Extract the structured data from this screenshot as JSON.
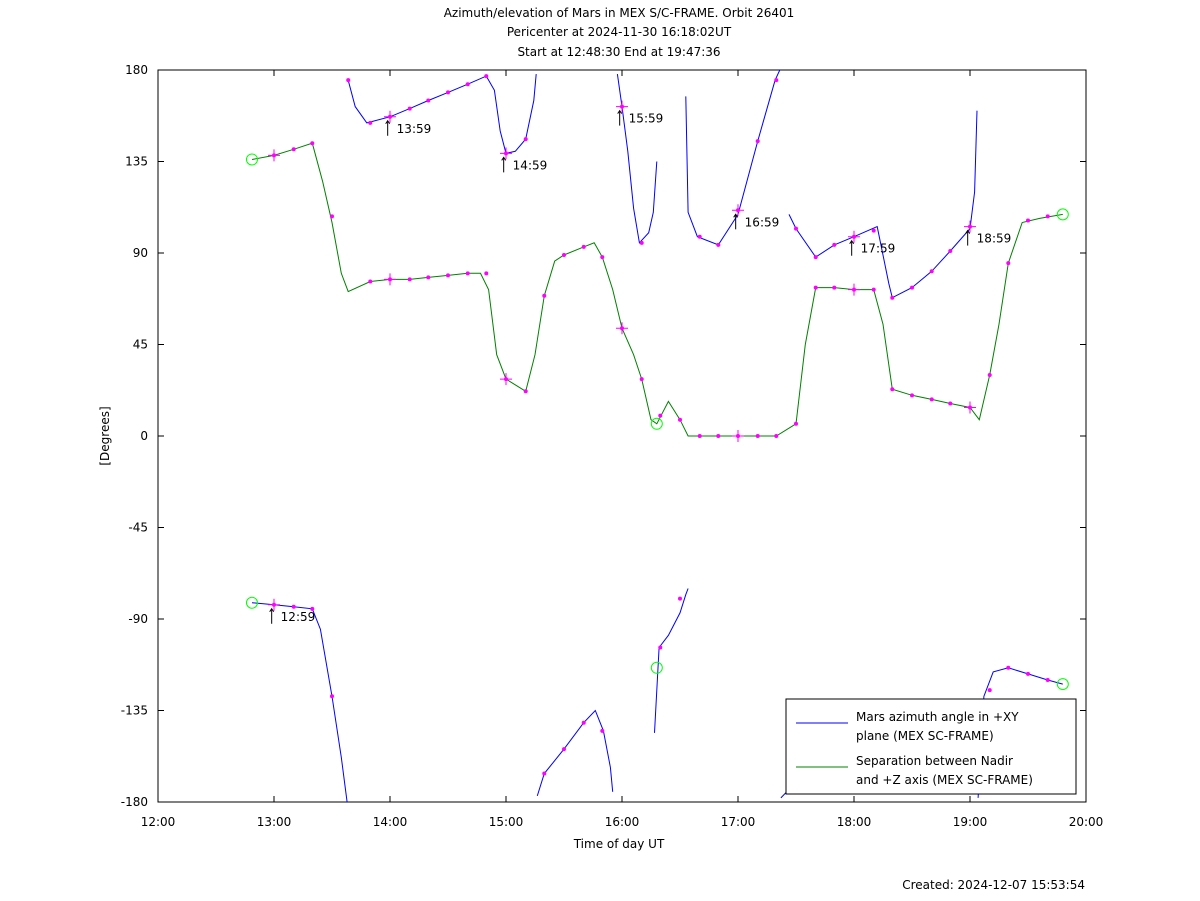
{
  "chart_data": {
    "type": "line",
    "title": "Azimuth/elevation of Mars in MEX S/C-FRAME.  Orbit 26401",
    "subtitle_1": "Pericenter at 2024-11-30 16:18:02UT",
    "subtitle_2": "Start at 12:48:30 End at 19:47:36",
    "xlabel": "Time of day UT",
    "ylabel": "[Degrees]",
    "x_unit": "hours of day (UT)",
    "xlim": [
      12,
      20
    ],
    "ylim": [
      -180,
      180
    ],
    "x_ticks": [
      12,
      13,
      14,
      15,
      16,
      17,
      18,
      19,
      20
    ],
    "x_tick_labels": [
      "12:00",
      "13:00",
      "14:00",
      "15:00",
      "16:00",
      "17:00",
      "18:00",
      "19:00",
      "20:00"
    ],
    "y_ticks": [
      -180,
      -135,
      -90,
      -45,
      0,
      45,
      90,
      135,
      180
    ],
    "y_tick_labels": [
      "-180",
      "-135",
      "-90",
      "-45",
      "0",
      "45",
      "90",
      "135",
      "180"
    ],
    "grid": false,
    "legend_position": "bottom-right",
    "footer": "Created: 2024-12-07 15:53:54",
    "colors": {
      "azimuth": "#0000ff",
      "separation": "#008000",
      "markers": "#ff00ff",
      "endpoints": "#00ff00"
    },
    "series": [
      {
        "name": "Mars azimuth angle in +XY plane (MEX SC-FRAME)",
        "legend_line1": "Mars azimuth angle in +XY",
        "legend_line2": "plane (MEX SC-FRAME)",
        "color": "#0000ff",
        "segments": [
          [
            [
              12.81,
              -82
            ],
            [
              13.0,
              -83
            ],
            [
              13.17,
              -84
            ],
            [
              13.33,
              -85
            ],
            [
              13.4,
              -95
            ],
            [
              13.5,
              -128
            ],
            [
              13.58,
              -158
            ],
            [
              13.63,
              -180
            ]
          ],
          [
            [
              13.64,
              175
            ],
            [
              13.7,
              162
            ],
            [
              13.8,
              154
            ],
            [
              14.0,
              157
            ],
            [
              14.17,
              161
            ],
            [
              14.33,
              165
            ],
            [
              14.5,
              169
            ],
            [
              14.67,
              173
            ],
            [
              14.83,
              177
            ],
            [
              14.9,
              170
            ],
            [
              14.95,
              150
            ],
            [
              15.0,
              139
            ],
            [
              15.08,
              140
            ],
            [
              15.17,
              146
            ],
            [
              15.24,
              165
            ],
            [
              15.26,
              178
            ]
          ],
          [
            [
              15.27,
              -177
            ],
            [
              15.33,
              -166
            ],
            [
              15.5,
              -154
            ],
            [
              15.67,
              -141
            ],
            [
              15.77,
              -135
            ],
            [
              15.84,
              -145
            ],
            [
              15.9,
              -163
            ],
            [
              15.92,
              -175
            ]
          ],
          [
            [
              15.96,
              178
            ],
            [
              16.0,
              162
            ],
            [
              16.05,
              140
            ],
            [
              16.1,
              112
            ],
            [
              16.15,
              95
            ],
            [
              16.23,
              100
            ],
            [
              16.27,
              110
            ],
            [
              16.3,
              135
            ]
          ],
          [
            [
              16.28,
              -146
            ],
            [
              16.32,
              -104
            ],
            [
              16.4,
              -98
            ],
            [
              16.5,
              -87
            ],
            [
              16.55,
              -78
            ],
            [
              16.57,
              -75
            ]
          ],
          [
            [
              16.55,
              167
            ],
            [
              16.57,
              110
            ],
            [
              16.65,
              98
            ],
            [
              16.83,
              94
            ],
            [
              17.0,
              109
            ],
            [
              17.17,
              145
            ],
            [
              17.32,
              175
            ],
            [
              17.36,
              180
            ]
          ],
          [
            [
              17.37,
              -178
            ],
            [
              17.42,
              -175
            ]
          ],
          [
            [
              17.44,
              109
            ],
            [
              17.5,
              102
            ],
            [
              17.67,
              88
            ],
            [
              17.83,
              94
            ],
            [
              18.0,
              98
            ],
            [
              18.2,
              103
            ],
            [
              18.3,
              75
            ],
            [
              18.33,
              68
            ],
            [
              18.5,
              73
            ],
            [
              18.67,
              81
            ],
            [
              18.83,
              91
            ],
            [
              19.0,
              102
            ],
            [
              19.04,
              120
            ],
            [
              19.06,
              160
            ]
          ],
          [
            [
              19.07,
              -178
            ],
            [
              19.12,
              -128
            ],
            [
              19.2,
              -116
            ],
            [
              19.33,
              -114
            ],
            [
              19.5,
              -117
            ],
            [
              19.67,
              -120
            ],
            [
              19.8,
              -122
            ]
          ]
        ],
        "markers": [
          [
            13.0,
            -83
          ],
          [
            13.17,
            -84
          ],
          [
            13.33,
            -85
          ],
          [
            13.5,
            -128
          ],
          [
            13.64,
            175
          ],
          [
            13.83,
            154
          ],
          [
            14.0,
            157
          ],
          [
            14.17,
            161
          ],
          [
            14.33,
            165
          ],
          [
            14.5,
            169
          ],
          [
            14.67,
            173
          ],
          [
            14.83,
            177
          ],
          [
            15.0,
            139
          ],
          [
            15.17,
            146
          ],
          [
            15.33,
            -166
          ],
          [
            15.5,
            -154
          ],
          [
            15.67,
            -141
          ],
          [
            15.83,
            -145
          ],
          [
            16.0,
            162
          ],
          [
            16.17,
            95
          ],
          [
            16.33,
            -104
          ],
          [
            16.5,
            -80
          ],
          [
            16.67,
            98
          ],
          [
            16.83,
            94
          ],
          [
            17.0,
            111
          ],
          [
            17.17,
            145
          ],
          [
            17.33,
            175
          ],
          [
            17.5,
            102
          ],
          [
            17.67,
            88
          ],
          [
            17.83,
            94
          ],
          [
            18.0,
            98
          ],
          [
            18.17,
            101
          ],
          [
            18.33,
            68
          ],
          [
            18.5,
            73
          ],
          [
            18.67,
            81
          ],
          [
            18.83,
            91
          ],
          [
            19.0,
            103
          ],
          [
            19.17,
            -125
          ],
          [
            19.33,
            -114
          ],
          [
            19.5,
            -117
          ],
          [
            19.67,
            -120
          ]
        ],
        "cross_markers": [
          [
            13.0,
            -83
          ],
          [
            14.0,
            157
          ],
          [
            15.0,
            139
          ],
          [
            16.0,
            162
          ],
          [
            17.0,
            111
          ],
          [
            18.0,
            98
          ],
          [
            19.0,
            103
          ]
        ],
        "endpoint_markers": [
          [
            12.81,
            -82
          ],
          [
            16.3,
            -114
          ],
          [
            19.8,
            -122
          ]
        ]
      },
      {
        "name": "Separation between Nadir and +Z axis (MEX SC-FRAME)",
        "legend_line1": "Separation between Nadir",
        "legend_line2": "and +Z axis (MEX SC-FRAME)",
        "color": "#008000",
        "segments": [
          [
            [
              12.81,
              136
            ],
            [
              13.0,
              138
            ],
            [
              13.17,
              141
            ],
            [
              13.33,
              144
            ],
            [
              13.42,
              125
            ],
            [
              13.5,
              105
            ],
            [
              13.58,
              80
            ],
            [
              13.64,
              71
            ],
            [
              13.83,
              76
            ],
            [
              14.0,
              77
            ],
            [
              14.17,
              77
            ],
            [
              14.33,
              78
            ],
            [
              14.5,
              79
            ],
            [
              14.67,
              80
            ],
            [
              14.78,
              80
            ],
            [
              14.85,
              72
            ],
            [
              14.92,
              40
            ],
            [
              15.0,
              28
            ],
            [
              15.17,
              22
            ],
            [
              15.25,
              40
            ],
            [
              15.33,
              69
            ],
            [
              15.42,
              86
            ],
            [
              15.5,
              89
            ],
            [
              15.67,
              93
            ],
            [
              15.76,
              95
            ],
            [
              15.83,
              88
            ],
            [
              15.92,
              72
            ],
            [
              16.0,
              53
            ],
            [
              16.1,
              40
            ],
            [
              16.17,
              28
            ],
            [
              16.25,
              8
            ],
            [
              16.3,
              6
            ],
            [
              16.4,
              17
            ],
            [
              16.5,
              8
            ],
            [
              16.57,
              0
            ],
            [
              16.67,
              0
            ],
            [
              16.83,
              0
            ],
            [
              17.0,
              0
            ],
            [
              17.17,
              0
            ],
            [
              17.33,
              0
            ],
            [
              17.5,
              6
            ],
            [
              17.58,
              45
            ],
            [
              17.67,
              73
            ],
            [
              17.83,
              73
            ],
            [
              18.0,
              72
            ],
            [
              18.17,
              72
            ],
            [
              18.25,
              55
            ],
            [
              18.33,
              23
            ],
            [
              18.5,
              20
            ],
            [
              18.67,
              18
            ],
            [
              18.83,
              16
            ],
            [
              19.0,
              14
            ],
            [
              19.08,
              8
            ],
            [
              19.17,
              30
            ],
            [
              19.25,
              55
            ],
            [
              19.33,
              85
            ],
            [
              19.45,
              105
            ],
            [
              19.6,
              107
            ],
            [
              19.8,
              109
            ]
          ]
        ],
        "markers": [
          [
            13.0,
            138
          ],
          [
            13.17,
            141
          ],
          [
            13.33,
            144
          ],
          [
            13.5,
            108
          ],
          [
            13.83,
            76
          ],
          [
            14.0,
            77
          ],
          [
            14.17,
            77
          ],
          [
            14.33,
            78
          ],
          [
            14.5,
            79
          ],
          [
            14.67,
            80
          ],
          [
            14.83,
            80
          ],
          [
            15.0,
            28
          ],
          [
            15.17,
            22
          ],
          [
            15.33,
            69
          ],
          [
            15.5,
            89
          ],
          [
            15.67,
            93
          ],
          [
            15.83,
            88
          ],
          [
            16.0,
            53
          ],
          [
            16.17,
            28
          ],
          [
            16.33,
            10
          ],
          [
            16.5,
            8
          ],
          [
            16.67,
            0
          ],
          [
            16.83,
            0
          ],
          [
            17.0,
            0
          ],
          [
            17.17,
            0
          ],
          [
            17.33,
            0
          ],
          [
            17.5,
            6
          ],
          [
            17.67,
            73
          ],
          [
            17.83,
            73
          ],
          [
            18.0,
            72
          ],
          [
            18.17,
            72
          ],
          [
            18.33,
            23
          ],
          [
            18.5,
            20
          ],
          [
            18.67,
            18
          ],
          [
            18.83,
            16
          ],
          [
            19.0,
            14
          ],
          [
            19.17,
            30
          ],
          [
            19.33,
            85
          ],
          [
            19.5,
            106
          ],
          [
            19.67,
            108
          ]
        ],
        "cross_markers": [
          [
            13.0,
            138
          ],
          [
            14.0,
            77
          ],
          [
            15.0,
            28
          ],
          [
            16.0,
            53
          ],
          [
            17.0,
            0
          ],
          [
            18.0,
            72
          ],
          [
            19.0,
            14
          ]
        ],
        "endpoint_markers": [
          [
            12.81,
            136
          ],
          [
            16.3,
            6
          ],
          [
            19.8,
            109
          ]
        ]
      }
    ],
    "annotations": [
      {
        "text": "12:59",
        "x": 12.98,
        "y": -83
      },
      {
        "text": "13:59",
        "x": 13.98,
        "y": 157
      },
      {
        "text": "14:59",
        "x": 14.98,
        "y": 139
      },
      {
        "text": "15:59",
        "x": 15.98,
        "y": 162
      },
      {
        "text": "16:59",
        "x": 16.98,
        "y": 111
      },
      {
        "text": "17:59",
        "x": 17.98,
        "y": 98
      },
      {
        "text": "18:59",
        "x": 18.98,
        "y": 103
      }
    ]
  }
}
